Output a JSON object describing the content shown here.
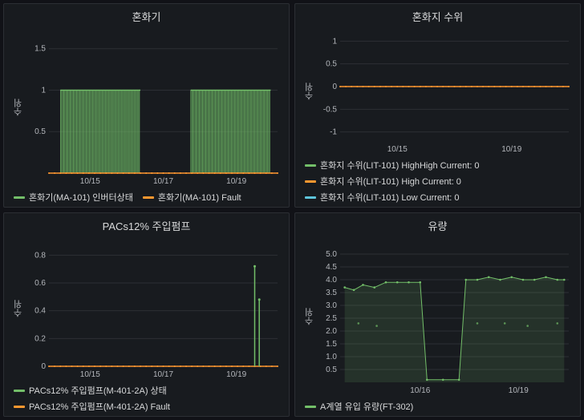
{
  "colors": {
    "bg": "#181b1f",
    "grid": "#2c2f34",
    "text": "#b4b7bc",
    "green": "#73bf69",
    "orange": "#ff9830",
    "cyan": "#5ec5db",
    "green_fill": "rgba(115,191,105,0.18)"
  },
  "panels": [
    {
      "id": "p1",
      "title": "혼화기",
      "ylabel": "수위",
      "ylim": [
        0,
        1.7
      ],
      "yticks": [
        0.5,
        1.0,
        1.5
      ],
      "xticks": [
        {
          "x": 0.18,
          "label": "10/15"
        },
        {
          "x": 0.5,
          "label": "10/17"
        },
        {
          "x": 0.82,
          "label": "10/19"
        }
      ],
      "legend": [
        {
          "color": "#73bf69",
          "label": "혼화기(MA-101) 인버터상태"
        },
        {
          "color": "#ff9830",
          "label": "혼화기(MA-101) Fault"
        }
      ],
      "series": [
        {
          "type": "block_bars",
          "color": "#73bf69",
          "blocks": [
            {
              "x0": 0.05,
              "x1": 0.4,
              "y": 1.0
            },
            {
              "x0": 0.62,
              "x1": 0.97,
              "y": 1.0
            }
          ]
        },
        {
          "type": "flat",
          "color": "#ff9830",
          "y": 0
        }
      ]
    },
    {
      "id": "p2",
      "title": "혼화지 수위",
      "ylabel": "수위",
      "ylim": [
        -1.2,
        1.2
      ],
      "yticks": [
        -1.0,
        -0.5,
        0,
        0.5,
        1.0
      ],
      "xticks": [
        {
          "x": 0.25,
          "label": "10/15"
        },
        {
          "x": 0.75,
          "label": "10/19"
        }
      ],
      "legend": [
        {
          "color": "#73bf69",
          "label": "혼화지 수위(LIT-101) HighHigh  Current: 0"
        },
        {
          "color": "#ff9830",
          "label": "혼화지 수위(LIT-101) High  Current: 0"
        },
        {
          "color": "#5ec5db",
          "label": "혼화지 수위(LIT-101) Low  Current: 0"
        }
      ],
      "series": [
        {
          "type": "flat",
          "color": "#ff9830",
          "y": 0
        }
      ]
    },
    {
      "id": "p3",
      "title": "PACs12% 주입펌프",
      "ylabel": "수위",
      "ylim": [
        0,
        0.9
      ],
      "yticks": [
        0,
        0.2,
        0.4,
        0.6,
        0.8
      ],
      "xticks": [
        {
          "x": 0.18,
          "label": "10/15"
        },
        {
          "x": 0.5,
          "label": "10/17"
        },
        {
          "x": 0.82,
          "label": "10/19"
        }
      ],
      "legend": [
        {
          "color": "#73bf69",
          "label": "PACs12% 주입펌프(M-401-2A) 상태"
        },
        {
          "color": "#ff9830",
          "label": "PACs12% 주입펌프(M-401-2A) Fault"
        }
      ],
      "series": [
        {
          "type": "flat",
          "color": "#ff9830",
          "y": 0
        },
        {
          "type": "spikes",
          "color": "#73bf69",
          "spikes": [
            {
              "x": 0.9,
              "y": 0.72
            },
            {
              "x": 0.92,
              "y": 0.48
            }
          ]
        }
      ]
    },
    {
      "id": "p4",
      "title": "유량",
      "ylabel": "수위",
      "ylim": [
        0,
        5.5
      ],
      "yticks": [
        0.5,
        1.0,
        1.5,
        2.0,
        2.5,
        3.0,
        3.5,
        4.0,
        4.5,
        5.0
      ],
      "xticks": [
        {
          "x": 0.35,
          "label": "10/16"
        },
        {
          "x": 0.78,
          "label": "10/19"
        }
      ],
      "legend": [
        {
          "color": "#73bf69",
          "label": "A계열 유입 유량(FT-302)"
        }
      ],
      "series": [
        {
          "type": "area",
          "color": "#73bf69",
          "fill": "rgba(115,191,105,0.15)",
          "points": [
            {
              "x": 0.02,
              "y": 3.7
            },
            {
              "x": 0.06,
              "y": 3.6
            },
            {
              "x": 0.1,
              "y": 3.8
            },
            {
              "x": 0.15,
              "y": 3.7
            },
            {
              "x": 0.2,
              "y": 3.9
            },
            {
              "x": 0.25,
              "y": 3.9
            },
            {
              "x": 0.3,
              "y": 3.9
            },
            {
              "x": 0.35,
              "y": 3.9
            },
            {
              "x": 0.38,
              "y": 0.1
            },
            {
              "x": 0.45,
              "y": 0.1
            },
            {
              "x": 0.52,
              "y": 0.1
            },
            {
              "x": 0.55,
              "y": 4.0
            },
            {
              "x": 0.6,
              "y": 4.0
            },
            {
              "x": 0.65,
              "y": 4.1
            },
            {
              "x": 0.7,
              "y": 4.0
            },
            {
              "x": 0.75,
              "y": 4.1
            },
            {
              "x": 0.8,
              "y": 4.0
            },
            {
              "x": 0.85,
              "y": 4.0
            },
            {
              "x": 0.9,
              "y": 4.1
            },
            {
              "x": 0.95,
              "y": 4.0
            },
            {
              "x": 0.98,
              "y": 4.0
            }
          ],
          "scatter_extra": [
            {
              "x": 0.08,
              "y": 2.3
            },
            {
              "x": 0.16,
              "y": 2.2
            },
            {
              "x": 0.6,
              "y": 2.3
            },
            {
              "x": 0.72,
              "y": 2.3
            },
            {
              "x": 0.82,
              "y": 2.2
            },
            {
              "x": 0.95,
              "y": 2.3
            }
          ]
        }
      ]
    }
  ]
}
